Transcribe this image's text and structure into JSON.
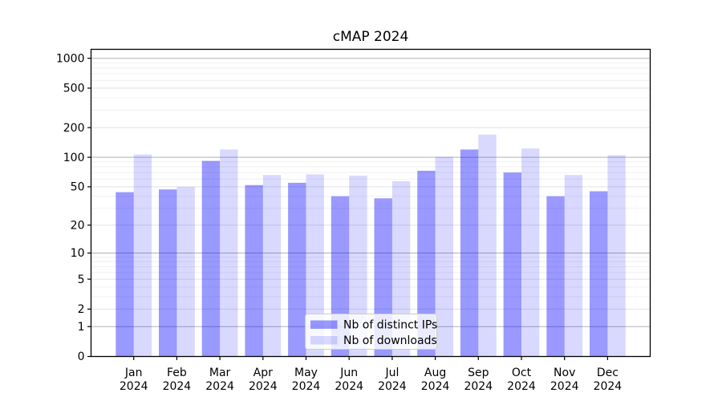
{
  "chart_data": {
    "type": "bar",
    "title": "cMAP 2024",
    "x": {
      "months": [
        "Jan",
        "Feb",
        "Mar",
        "Apr",
        "May",
        "Jun",
        "Jul",
        "Aug",
        "Sep",
        "Oct",
        "Nov",
        "Dec"
      ],
      "year": "2024"
    },
    "series": [
      {
        "name": "Nb of distinct IPs",
        "color": "rgba(0,0,255,0.4)",
        "values": [
          44,
          47,
          92,
          52,
          55,
          40,
          38,
          73,
          120,
          70,
          40,
          45
        ]
      },
      {
        "name": "Nb of downloads",
        "color": "rgba(0,0,255,0.15)",
        "values": [
          107,
          50,
          120,
          66,
          67,
          65,
          57,
          101,
          170,
          123,
          66,
          105
        ]
      }
    ],
    "y_axis": {
      "scale": "log1p",
      "tick_values": [
        0,
        1,
        2,
        5,
        10,
        20,
        50,
        100,
        200,
        500,
        1000
      ],
      "tick_labels": [
        "0",
        "1",
        "2",
        "5",
        "10",
        "20",
        "50",
        "100",
        "200",
        "500",
        "1000"
      ],
      "major_gridlines": [
        1,
        10,
        100,
        1000
      ],
      "minor_gridlines": [
        2,
        5,
        20,
        50,
        200,
        500
      ],
      "faint_gridlines": [
        3,
        4,
        6,
        7,
        8,
        9,
        30,
        40,
        60,
        70,
        80,
        90,
        300,
        400,
        600,
        700,
        800,
        900
      ],
      "ylim": [
        0,
        1225
      ]
    },
    "legend": {
      "position": "lower center"
    },
    "grid": true
  },
  "colors": {
    "spine": "#000000",
    "major_grid": "#b3b3b3",
    "minor_grid": "#e2e2e2",
    "faint_grid": "#f0f0f0",
    "legend_border": "#cccccc",
    "legend_bg": "rgba(255,255,255,0.8)"
  }
}
